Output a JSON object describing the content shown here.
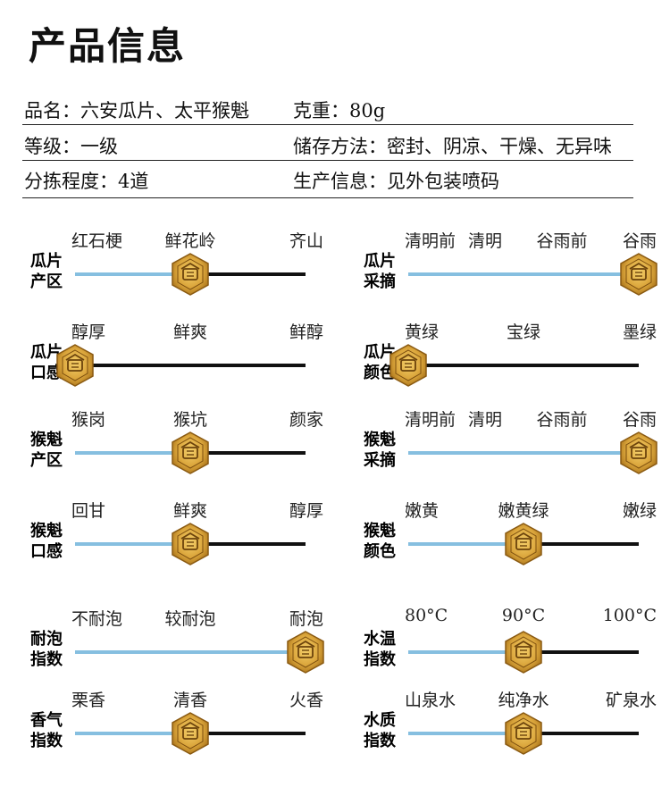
{
  "title": "产品信息",
  "info": [
    {
      "label": "品名：",
      "value": "六安瓜片、太平猴魁"
    },
    {
      "label": "克重：",
      "value": "80g"
    },
    {
      "label": "等级：",
      "value": "一级"
    },
    {
      "label": "储存方法：",
      "value": "密封、阴凉、干燥、无异味"
    },
    {
      "label": "分拣程度：",
      "value": "4道"
    },
    {
      "label": "生产信息：",
      "value": "见外包装喷码"
    }
  ],
  "colors": {
    "track_filled": "#86bfe0",
    "track_empty": "#111111",
    "knob": "#d9a53a"
  },
  "knob_icon": "hexagon-tea-emblem-icon",
  "sliders": [
    {
      "label": [
        "瓜片",
        "产区"
      ],
      "options": [
        "红石梗",
        "鲜花岭",
        "齐山"
      ],
      "selected": 1,
      "position": 0.5
    },
    {
      "label": [
        "瓜片",
        "采摘"
      ],
      "options": [
        "清明前",
        "清明",
        "谷雨前",
        "谷雨"
      ],
      "selected": 3,
      "position": 1.0
    },
    {
      "label": [
        "瓜片",
        "口感"
      ],
      "options": [
        "醇厚",
        "鲜爽",
        "鲜醇"
      ],
      "selected": 0,
      "position": 0.0
    },
    {
      "label": [
        "瓜片",
        "颜色"
      ],
      "options": [
        "黄绿",
        "宝绿",
        "墨绿"
      ],
      "selected": 0,
      "position": 0.0
    },
    {
      "label": [
        "猴魁",
        "产区"
      ],
      "options": [
        "猴岗",
        "猴坑",
        "颜家"
      ],
      "selected": 1,
      "position": 0.5
    },
    {
      "label": [
        "猴魁",
        "采摘"
      ],
      "options": [
        "清明前",
        "清明",
        "谷雨前",
        "谷雨"
      ],
      "selected": 3,
      "position": 1.0
    },
    {
      "label": [
        "猴魁",
        "口感"
      ],
      "options": [
        "回甘",
        "鲜爽",
        "醇厚"
      ],
      "selected": 1,
      "position": 0.5
    },
    {
      "label": [
        "猴魁",
        "颜色"
      ],
      "options": [
        "嫩黄",
        "嫩黄绿",
        "嫩绿"
      ],
      "selected": 1,
      "position": 0.5
    },
    {
      "label": [
        "耐泡",
        "指数"
      ],
      "options": [
        "不耐泡",
        "较耐泡",
        "耐泡"
      ],
      "selected": 2,
      "position": 1.0
    },
    {
      "label": [
        "水温",
        "指数"
      ],
      "options": [
        "80°C",
        "90°C",
        "100°C"
      ],
      "selected": 1,
      "position": 0.5
    },
    {
      "label": [
        "香气",
        "指数"
      ],
      "options": [
        "栗香",
        "清香",
        "火香"
      ],
      "selected": 1,
      "position": 0.5
    },
    {
      "label": [
        "水质",
        "指数"
      ],
      "options": [
        "山泉水",
        "纯净水",
        "矿泉水"
      ],
      "selected": 1,
      "position": 0.5
    }
  ]
}
